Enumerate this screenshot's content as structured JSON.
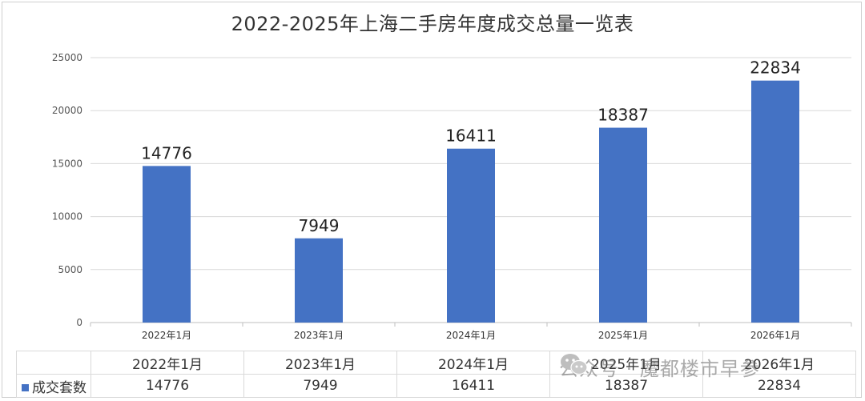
{
  "chart_data": {
    "type": "bar",
    "title": "2022-2025年上海二手房年度成交总量一览表",
    "categories": [
      "2022年1月",
      "2023年1月",
      "2024年1月",
      "2025年1月",
      "2026年1月"
    ],
    "series": [
      {
        "name": "成交套数",
        "values": [
          14776,
          7949,
          16411,
          18387,
          22834
        ],
        "color": "#4472c4"
      }
    ],
    "yticks": [
      0,
      5000,
      10000,
      15000,
      20000,
      25000
    ],
    "ylim": [
      0,
      25000
    ],
    "grid": true,
    "data_labels": true,
    "data_table": true,
    "legend_placement": "in data table"
  },
  "watermark": {
    "icon": "wechat-icon",
    "text": "公众号 · 魔都楼市早参"
  }
}
